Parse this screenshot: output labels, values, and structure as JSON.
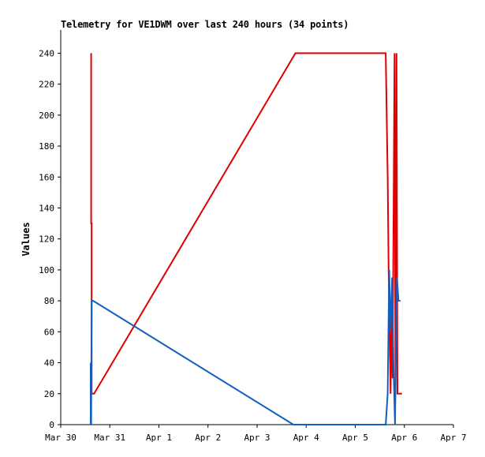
{
  "chart_data": {
    "type": "line",
    "title": "Telemetry for VE1DWM over last 240 hours (34 points)",
    "xlabel": "",
    "ylabel": "Values",
    "x_tick_labels": [
      "Mar 30",
      "Mar 31",
      "Apr 1",
      "Apr 2",
      "Apr 3",
      "Apr 4",
      "Apr 5",
      "Apr 6",
      "Apr 7"
    ],
    "xlim_days": [
      0,
      8
    ],
    "ylim": [
      0,
      255
    ],
    "y_ticks": [
      0,
      20,
      40,
      60,
      80,
      100,
      120,
      140,
      160,
      180,
      200,
      220,
      240
    ],
    "grid": false,
    "series": [
      {
        "color": "#e00000",
        "points": [
          [
            0.62,
            240
          ],
          [
            0.62,
            130
          ],
          [
            0.63,
            130
          ],
          [
            0.63,
            20
          ],
          [
            0.68,
            20
          ],
          [
            4.78,
            240
          ],
          [
            6.62,
            240
          ],
          [
            6.66,
            160
          ],
          [
            6.68,
            100
          ],
          [
            6.72,
            20
          ],
          [
            6.74,
            80
          ],
          [
            6.76,
            30
          ],
          [
            6.8,
            240
          ],
          [
            6.82,
            20
          ],
          [
            6.84,
            240
          ],
          [
            6.86,
            20
          ],
          [
            6.9,
            20
          ],
          [
            6.95,
            20
          ]
        ]
      },
      {
        "color": "#1060c0",
        "points": [
          [
            0.61,
            0
          ],
          [
            0.61,
            40
          ],
          [
            0.62,
            0
          ],
          [
            0.63,
            80
          ],
          [
            0.66,
            80
          ],
          [
            4.74,
            0
          ],
          [
            6.62,
            0
          ],
          [
            6.66,
            20
          ],
          [
            6.69,
            100
          ],
          [
            6.72,
            60
          ],
          [
            6.75,
            95
          ],
          [
            6.78,
            35
          ],
          [
            6.81,
            0
          ],
          [
            6.85,
            95
          ],
          [
            6.88,
            80
          ],
          [
            6.92,
            80
          ]
        ]
      }
    ]
  }
}
